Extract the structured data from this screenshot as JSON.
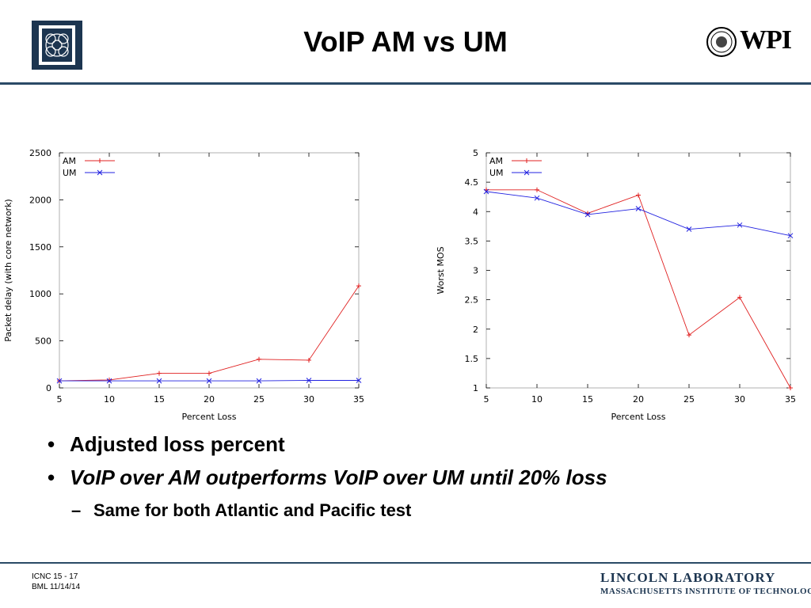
{
  "slide": {
    "title": "VoIP AM vs UM",
    "bullets": [
      "Adjusted loss percent",
      "VoIP over AM outperforms VoIP over UM until 20% loss"
    ],
    "sub_bullet": "Same for both Atlantic and Pacific test",
    "footer": {
      "line1": "ICNC 15 - 17",
      "line2": "BML  11/14/14"
    },
    "logos": {
      "right_top": "WPI",
      "lab_line1": "LINCOLN LABORATORY",
      "lab_line2": "MASSACHUSETTS INSTITUTE OF TECHNOLOGY"
    },
    "colors": {
      "rule": "#2a4a66",
      "am": "#e02020",
      "um": "#2020e0",
      "logo": "#1c3550"
    }
  },
  "chart_data": [
    {
      "type": "line",
      "xlabel": "Percent Loss",
      "ylabel": "Packet delay (with core network)",
      "xlim": [
        5,
        35
      ],
      "ylim": [
        0,
        2500
      ],
      "xticks": [
        5,
        10,
        15,
        20,
        25,
        30,
        35
      ],
      "yticks": [
        0,
        500,
        1000,
        1500,
        2000,
        2500
      ],
      "legend": "top-left",
      "series": [
        {
          "name": "AM",
          "marker": "+",
          "color": "#e02020",
          "x": [
            5,
            10,
            15,
            20,
            25,
            30,
            35
          ],
          "values": [
            75,
            85,
            155,
            155,
            305,
            295,
            1085
          ]
        },
        {
          "name": "UM",
          "marker": "x",
          "color": "#2020e0",
          "x": [
            5,
            10,
            15,
            20,
            25,
            30,
            35
          ],
          "values": [
            75,
            75,
            75,
            75,
            75,
            80,
            80
          ]
        }
      ]
    },
    {
      "type": "line",
      "xlabel": "Percent Loss",
      "ylabel": "Worst MOS",
      "xlim": [
        5,
        35
      ],
      "ylim": [
        1,
        5
      ],
      "xticks": [
        5,
        10,
        15,
        20,
        25,
        30,
        35
      ],
      "yticks": [
        1,
        1.5,
        2,
        2.5,
        3,
        3.5,
        4,
        4.5,
        5
      ],
      "legend": "top-left",
      "series": [
        {
          "name": "AM",
          "marker": "+",
          "color": "#e02020",
          "x": [
            5,
            10,
            15,
            20,
            25,
            30,
            35
          ],
          "values": [
            4.37,
            4.37,
            3.97,
            4.28,
            1.9,
            2.54,
            1.0
          ]
        },
        {
          "name": "UM",
          "marker": "x",
          "color": "#2020e0",
          "x": [
            5,
            10,
            15,
            20,
            25,
            30,
            35
          ],
          "values": [
            4.34,
            4.23,
            3.95,
            4.05,
            3.7,
            3.77,
            3.59
          ]
        }
      ]
    }
  ]
}
